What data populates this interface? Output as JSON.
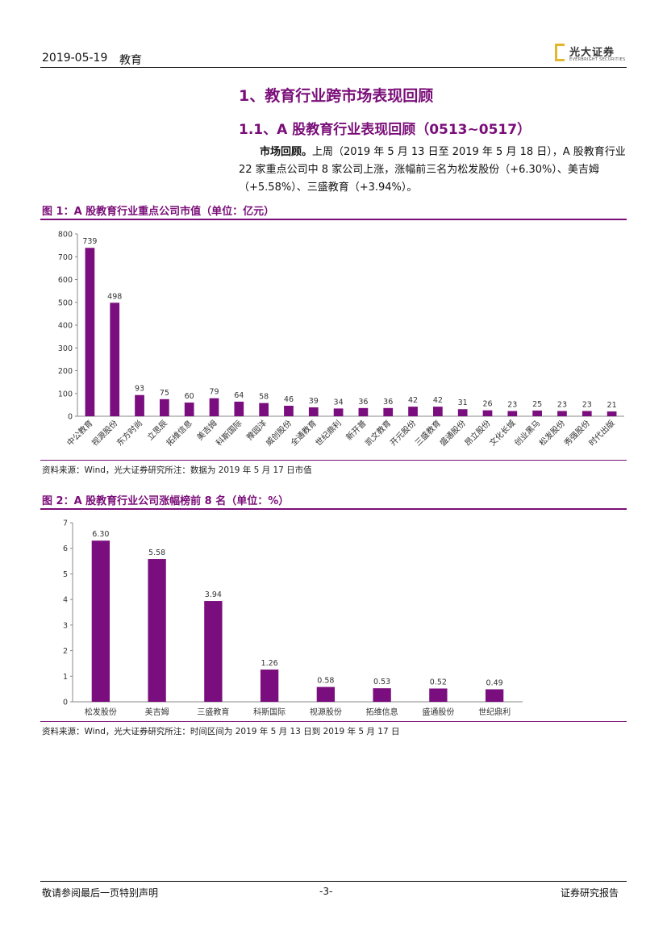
{
  "header": {
    "date": "2019-05-19",
    "section": "教育",
    "logo_name": "光大证券",
    "logo_sub": "EVERBRIGHT SECURITIES"
  },
  "heading1": "1、教育行业跨市场表现回顾",
  "heading2": "1.1、A 股教育行业表现回顾（0513~0517）",
  "paragraph": {
    "lead": "市场回顾。",
    "text": "上周（2019 年 5 月 13 日至 2019 年 5 月 18 日），A 股教育行业 22 家重点公司中 8 家公司上涨，涨幅前三名为松发股份（+6.30%）、美吉姆（+5.58%）、三盛教育（+3.94%）。"
  },
  "figure1": {
    "title": "图 1：A 股教育行业重点公司市值（单位：亿元）",
    "source": "资料来源：Wind，光大证券研究所注：数据为 2019 年 5 月 17 日市值"
  },
  "figure2": {
    "title": "图 2：A 股教育行业公司涨幅榜前 8 名（单位：%）",
    "source": "资料来源：Wind，光大证券研究所注：时间区间为 2019 年 5 月 13 日到 2019 年 5 月 17 日"
  },
  "chart_data": [
    {
      "type": "bar",
      "title": "图 1：A 股教育行业重点公司市值（单位：亿元）",
      "categories": [
        "中公教育",
        "视源股份",
        "东方时尚",
        "立思辰",
        "拓维信息",
        "美吉姆",
        "科斯国际",
        "豫园洋",
        "威创股份",
        "全通教育",
        "世纪鼎利",
        "新开普",
        "凯文教育",
        "开元股份",
        "三盛教育",
        "盛通股份",
        "昂立股份",
        "文化长城",
        "创业黑马",
        "松发股份",
        "秀强股份",
        "时代出版"
      ],
      "values": [
        739,
        498,
        93,
        75,
        60,
        79,
        64,
        58,
        46,
        39,
        34,
        36,
        36,
        42,
        42,
        31,
        26,
        23,
        25,
        23,
        23,
        21
      ],
      "value_labels": [
        "739",
        "498",
        "93",
        "75",
        "60",
        "79",
        "64",
        "58",
        "46",
        "39",
        "34",
        "36",
        "36",
        "42",
        "42",
        "31",
        "26",
        "23",
        "25",
        "23",
        "23",
        "21"
      ],
      "ylim": [
        0,
        800
      ],
      "yticks": [
        0,
        100,
        200,
        300,
        400,
        500,
        600,
        700,
        800
      ],
      "color": "#7b0e7e"
    },
    {
      "type": "bar",
      "title": "图 2：A 股教育行业公司涨幅榜前 8 名（单位：%）",
      "categories": [
        "松发股份",
        "美吉姆",
        "三盛教育",
        "科斯国际",
        "视源股份",
        "拓维信息",
        "盛通股份",
        "世纪鼎利"
      ],
      "values": [
        6.3,
        5.58,
        3.94,
        1.26,
        0.58,
        0.53,
        0.52,
        0.49
      ],
      "value_labels": [
        "6.30",
        "5.58",
        "3.94",
        "1.26",
        "0.58",
        "0.53",
        "0.52",
        "0.49"
      ],
      "ylim": [
        0,
        7
      ],
      "yticks": [
        0,
        1,
        2,
        3,
        4,
        5,
        6,
        7
      ],
      "color": "#7b0e7e"
    }
  ],
  "footer": {
    "left": "敬请参阅最后一页特别声明",
    "center": "-3-",
    "right": "证券研究报告"
  }
}
